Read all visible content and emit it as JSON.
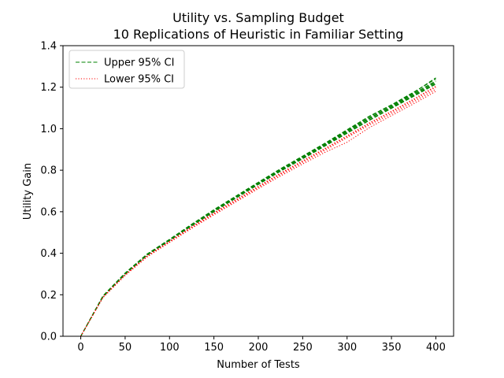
{
  "chart_data": {
    "type": "line",
    "title": "Utility vs. Sampling Budget",
    "subtitle": "10 Replications of Heuristic in Familiar Setting",
    "xlabel": "Number of Tests",
    "ylabel": "Utility Gain",
    "xlim": [
      -20,
      420
    ],
    "ylim": [
      0,
      1.4
    ],
    "xticks": [
      0,
      50,
      100,
      150,
      200,
      250,
      300,
      350,
      400
    ],
    "yticks": [
      0.0,
      0.2,
      0.4,
      0.6,
      0.8,
      1.0,
      1.2,
      1.4
    ],
    "xtick_labels": [
      "0",
      "50",
      "100",
      "150",
      "200",
      "250",
      "300",
      "350",
      "400"
    ],
    "ytick_labels": [
      "0.0",
      "0.2",
      "0.4",
      "0.6",
      "0.8",
      "1.0",
      "1.2",
      "1.4"
    ],
    "grid": false,
    "legend_position": "top-left",
    "x": [
      0,
      25,
      50,
      75,
      100,
      125,
      150,
      175,
      200,
      225,
      250,
      275,
      300,
      325,
      350,
      375,
      400
    ],
    "series": [
      {
        "name": "Upper 95% CI",
        "color": "#008000",
        "style": "dashed",
        "values": [
          0,
          0.195,
          0.305,
          0.397,
          0.467,
          0.54,
          0.61,
          0.676,
          0.742,
          0.807,
          0.868,
          0.93,
          0.995,
          1.06,
          1.115,
          1.176,
          1.24
        ]
      },
      {
        "name": "Upper 95% CI",
        "color": "#008000",
        "style": "dashed",
        "values": [
          0,
          0.19,
          0.3,
          0.392,
          0.462,
          0.533,
          0.602,
          0.668,
          0.733,
          0.797,
          0.857,
          0.918,
          0.98,
          1.042,
          1.1,
          1.16,
          1.22
        ]
      },
      {
        "name": "Upper 95% CI",
        "color": "#008000",
        "style": "dashed",
        "values": [
          0,
          0.192,
          0.302,
          0.394,
          0.464,
          0.536,
          0.606,
          0.672,
          0.737,
          0.802,
          0.862,
          0.924,
          0.988,
          1.052,
          1.108,
          1.17,
          1.23
        ]
      },
      {
        "name": "Upper 95% CI",
        "color": "#008000",
        "style": "dashed",
        "values": [
          0,
          0.193,
          0.303,
          0.396,
          0.466,
          0.538,
          0.608,
          0.674,
          0.74,
          0.805,
          0.866,
          0.927,
          0.992,
          1.058,
          1.113,
          1.174,
          1.245
        ]
      },
      {
        "name": "Upper 95% CI",
        "color": "#008000",
        "style": "dashed",
        "values": [
          0,
          0.19,
          0.299,
          0.391,
          0.461,
          0.532,
          0.6,
          0.666,
          0.731,
          0.795,
          0.855,
          0.916,
          0.978,
          1.04,
          1.098,
          1.156,
          1.215
        ]
      },
      {
        "name": "Upper 95% CI",
        "color": "#008000",
        "style": "dashed",
        "values": [
          0,
          0.191,
          0.301,
          0.393,
          0.463,
          0.535,
          0.604,
          0.67,
          0.735,
          0.8,
          0.86,
          0.921,
          0.985,
          1.048,
          1.105,
          1.165,
          1.225
        ]
      },
      {
        "name": "Lower 95% CI",
        "color": "#ff0000",
        "style": "dotted",
        "values": [
          0,
          0.187,
          0.294,
          0.385,
          0.455,
          0.524,
          0.59,
          0.653,
          0.717,
          0.779,
          0.838,
          0.896,
          0.957,
          1.018,
          1.072,
          1.13,
          1.19
        ]
      },
      {
        "name": "Lower 95% CI",
        "color": "#ff0000",
        "style": "dotted",
        "values": [
          0,
          0.189,
          0.297,
          0.388,
          0.458,
          0.528,
          0.595,
          0.659,
          0.723,
          0.786,
          0.846,
          0.905,
          0.966,
          1.028,
          1.084,
          1.143,
          1.205
        ]
      },
      {
        "name": "Lower 95% CI",
        "color": "#ff0000",
        "style": "dotted",
        "values": [
          0,
          0.186,
          0.293,
          0.383,
          0.452,
          0.52,
          0.585,
          0.648,
          0.711,
          0.772,
          0.83,
          0.886,
          0.935,
          1.005,
          1.063,
          1.12,
          1.18
        ]
      },
      {
        "name": "Lower 95% CI",
        "color": "#ff0000",
        "style": "dotted",
        "values": [
          0,
          0.188,
          0.296,
          0.387,
          0.457,
          0.526,
          0.593,
          0.657,
          0.72,
          0.783,
          0.843,
          0.902,
          0.962,
          1.024,
          1.08,
          1.138,
          1.2
        ]
      }
    ],
    "legend": [
      {
        "label": "Upper 95% CI",
        "color": "#008000",
        "style": "dashed"
      },
      {
        "label": "Lower 95% CI",
        "color": "#ff0000",
        "style": "dotted"
      }
    ]
  }
}
